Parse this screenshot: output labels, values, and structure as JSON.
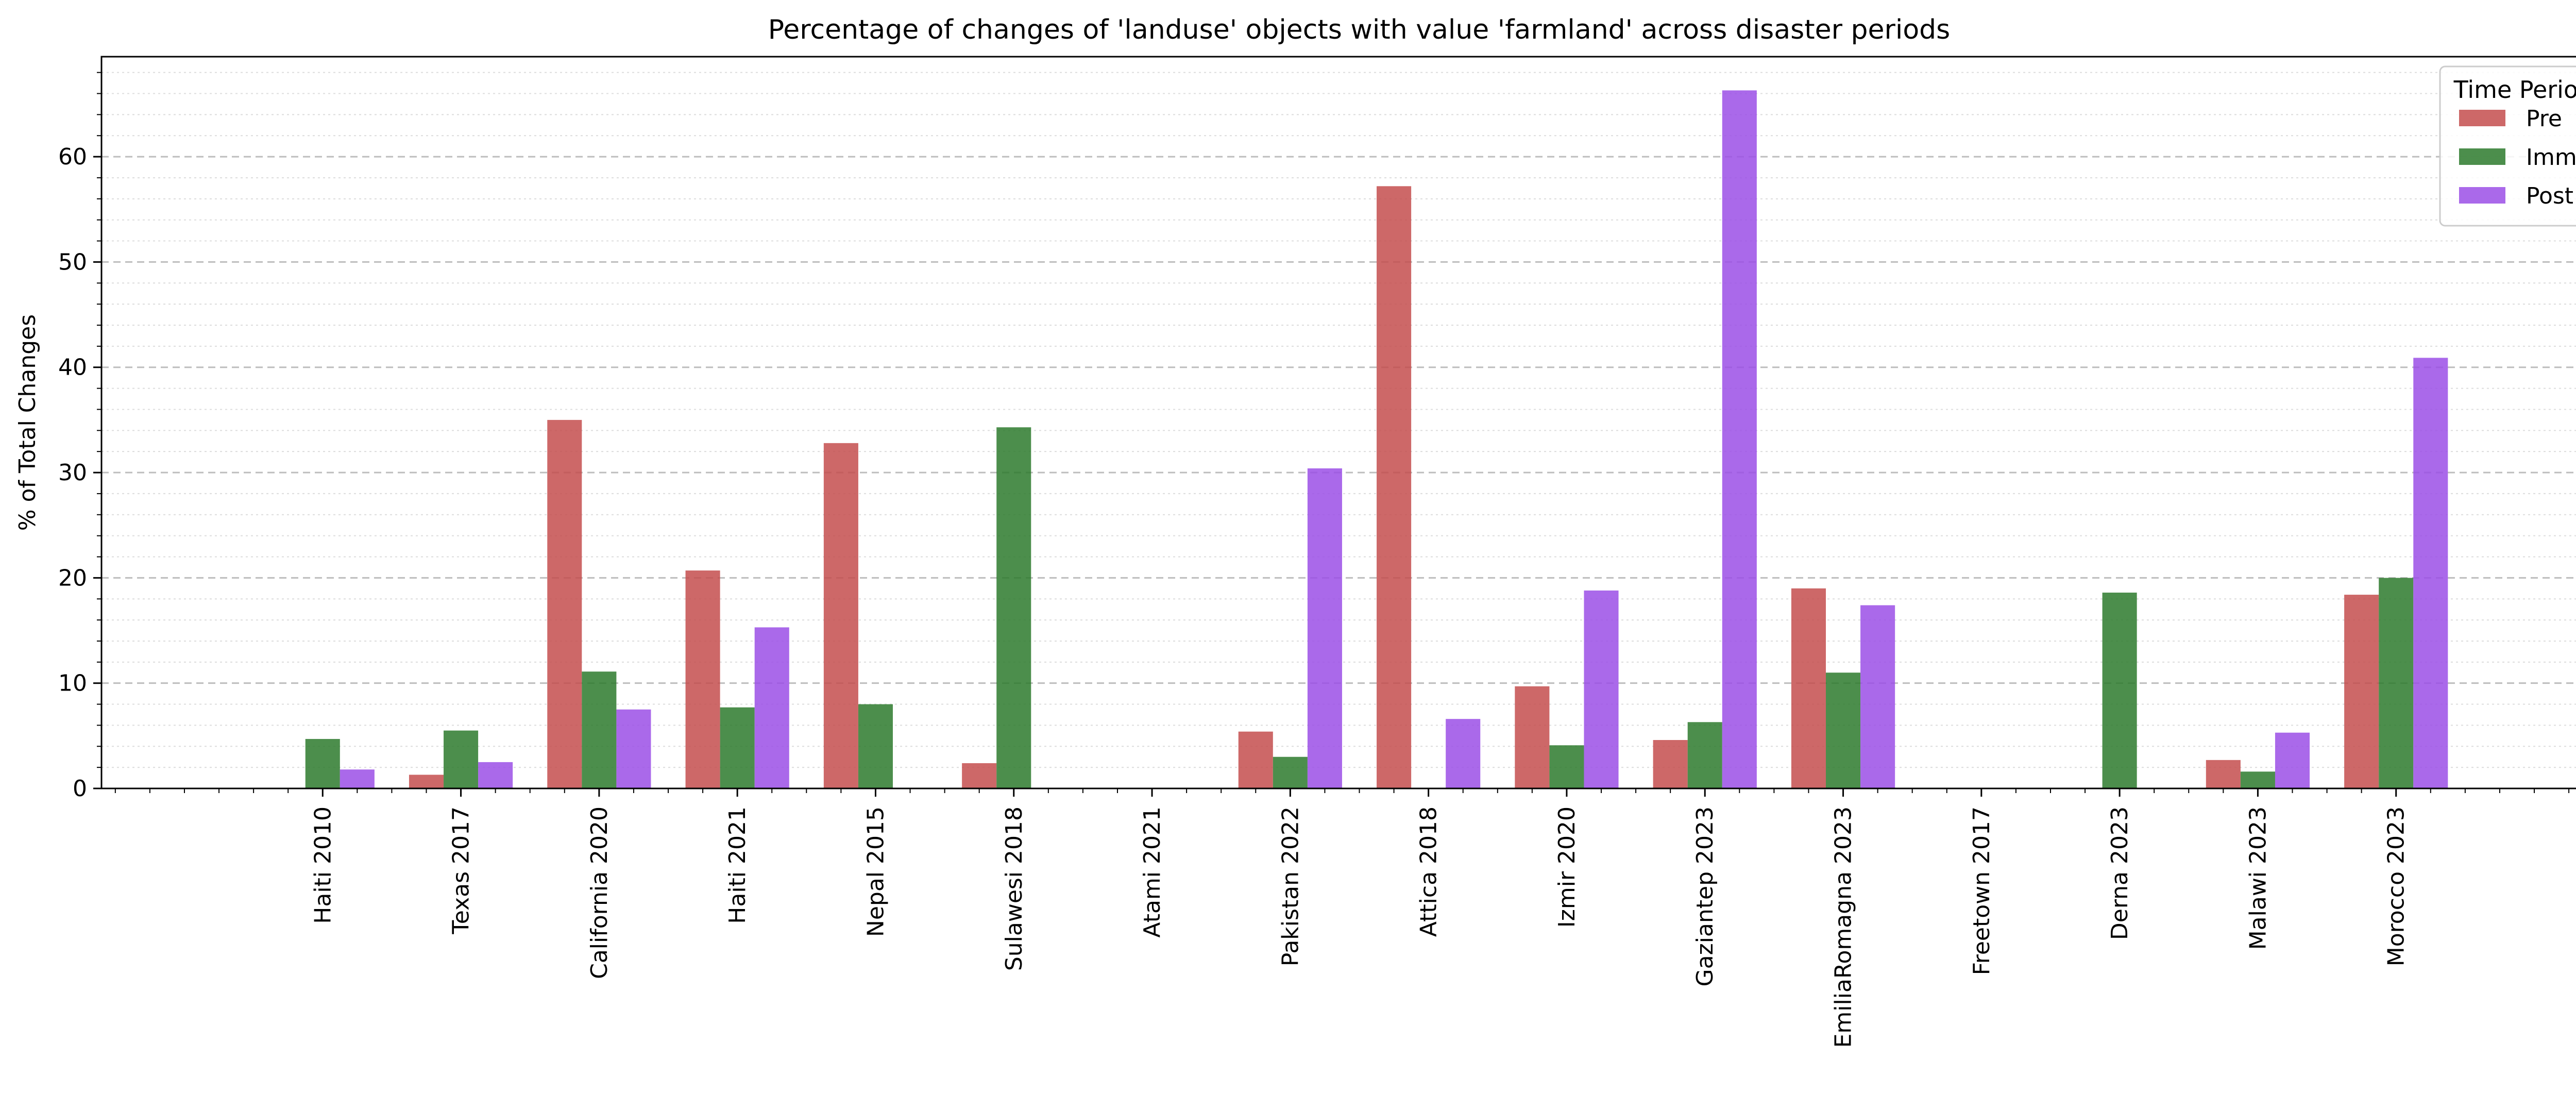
{
  "chart_data": {
    "type": "bar",
    "title": "Percentage of changes of 'landuse' objects with value 'farmland' across disaster periods",
    "xlabel": "",
    "ylabel": "% of Total Changes",
    "ylim": [
      0,
      69.5
    ],
    "y_major_ticks": [
      0,
      10,
      20,
      30,
      40,
      50,
      60
    ],
    "y_minor_step": 2,
    "grid": true,
    "legend": {
      "title": "Time Period",
      "placement": "top-right"
    },
    "categories": [
      "Haiti 2010",
      "Texas 2017",
      "California 2020",
      "Haiti 2021",
      "Nepal 2015",
      "Sulawesi 2018",
      "Atami 2021",
      "Pakistan 2022",
      "Attica 2018",
      "Izmir 2020",
      "Gaziantep 2023",
      "EmiliaRomagna 2023",
      "Freetown 2017",
      "Derna 2023",
      "Malawi 2023",
      "Morocco 2023"
    ],
    "series": [
      {
        "name": "Pre",
        "color": "#c44e4e",
        "values": [
          0,
          1.3,
          35.0,
          20.7,
          32.8,
          2.4,
          0,
          5.4,
          57.2,
          9.7,
          4.6,
          19.0,
          0,
          0,
          2.7,
          18.4
        ]
      },
      {
        "name": "Imm",
        "color": "#2d7a2d",
        "values": [
          4.7,
          5.5,
          11.1,
          7.7,
          8.0,
          34.3,
          0,
          3.0,
          0,
          4.1,
          6.3,
          11.0,
          0,
          18.6,
          1.6,
          20.0
        ]
      },
      {
        "name": "Post",
        "color": "#9b4fe6",
        "values": [
          1.8,
          2.5,
          7.5,
          15.3,
          0,
          0,
          0,
          30.4,
          6.6,
          18.8,
          66.3,
          17.4,
          0,
          0,
          5.3,
          40.9
        ]
      }
    ]
  }
}
